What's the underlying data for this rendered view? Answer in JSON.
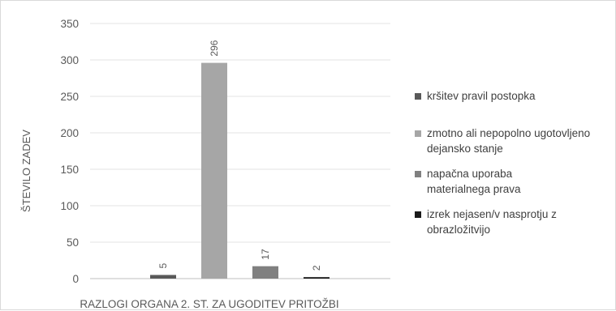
{
  "chart_data": {
    "type": "bar",
    "title": "",
    "xlabel": "RAZLOGI ORGANA 2. ST. ZA UGODITEV PRITOŽBI",
    "ylabel": "ŠTEVILO ZADEV",
    "ylim": [
      0,
      350
    ],
    "yticks": [
      "0",
      "50",
      "100",
      "150",
      "200",
      "250",
      "300",
      "350"
    ],
    "grid": true,
    "legend_position": "right",
    "series": [
      {
        "name": "kršitev pravil postopka",
        "value": 5,
        "label": "5",
        "color": "#595959"
      },
      {
        "name": "zmotno ali nepopolno ugotovljeno dejansko stanje",
        "value": 296,
        "label": "296",
        "color": "#a6a6a6"
      },
      {
        "name": "napačna uporaba materialnega prava",
        "value": 17,
        "label": "17",
        "color": "#808080"
      },
      {
        "name": "izrek nejasen/v nasprotju z obrazložitvijo",
        "value": 2,
        "label": "2",
        "color": "#1a1a1a"
      }
    ]
  }
}
